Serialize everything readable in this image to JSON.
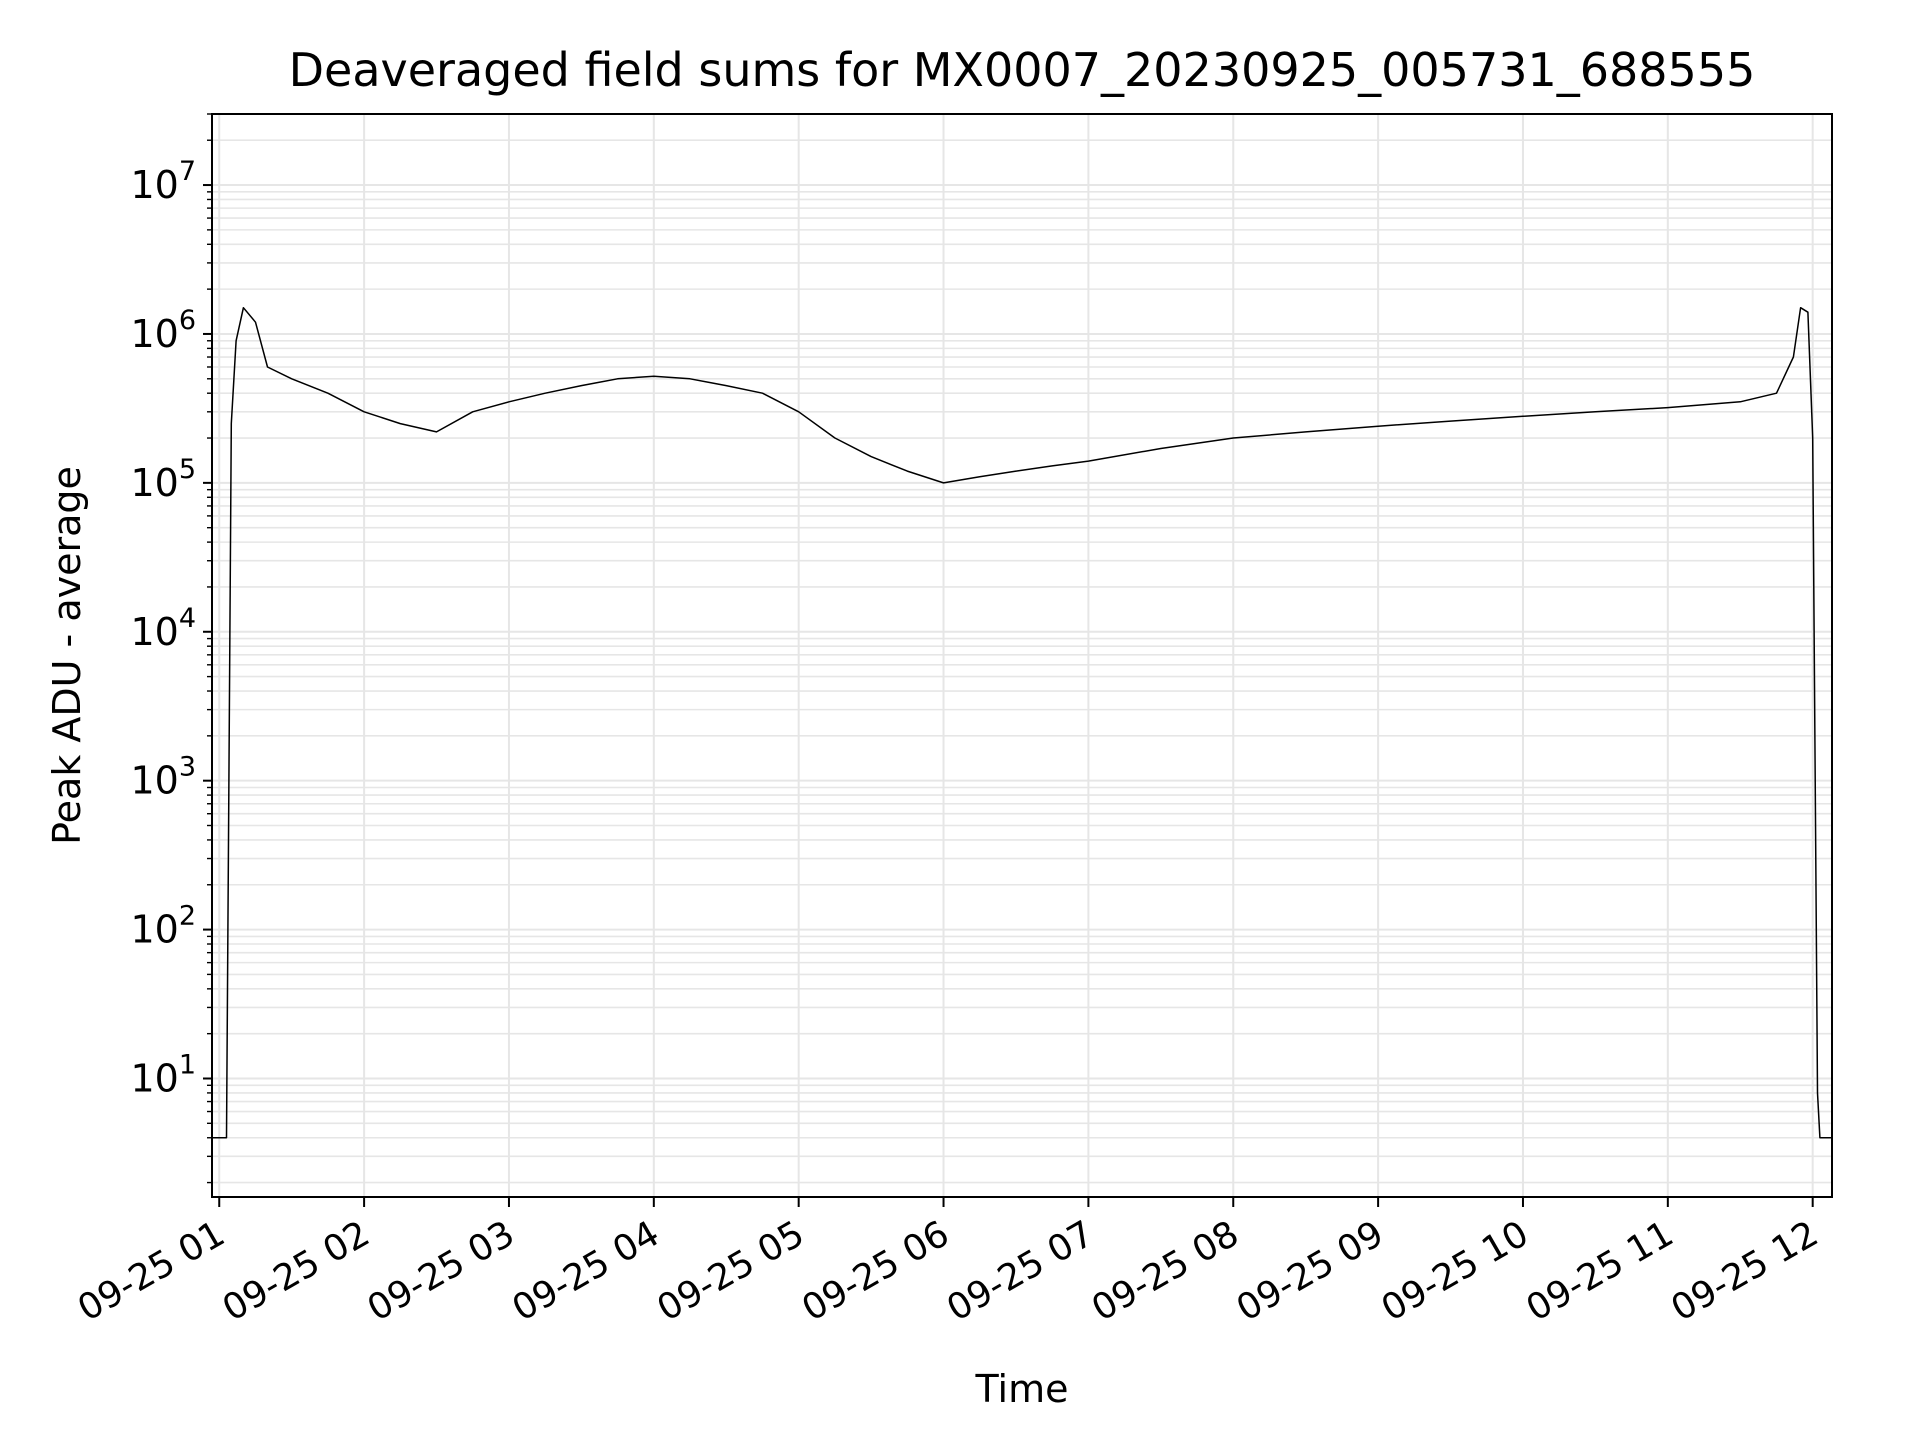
{
  "chart_data": {
    "type": "line",
    "title": "Deaveraged field sums for MX0007_20230925_005731_688555",
    "xlabel": "Time",
    "ylabel": "Peak ADU - average",
    "yscale": "log",
    "grid": true,
    "grid_minor": true,
    "line_color": "#000000",
    "grid_color": "#e6e6e6",
    "x_ticks": [
      "09-25 01",
      "09-25 02",
      "09-25 03",
      "09-25 04",
      "09-25 05",
      "09-25 06",
      "09-25 07",
      "09-25 08",
      "09-25 09",
      "09-25 10",
      "09-25 11",
      "09-25 12"
    ],
    "y_ticks": [
      {
        "base": "10",
        "exp": "1"
      },
      {
        "base": "10",
        "exp": "2"
      },
      {
        "base": "10",
        "exp": "3"
      },
      {
        "base": "10",
        "exp": "4"
      },
      {
        "base": "10",
        "exp": "5"
      },
      {
        "base": "10",
        "exp": "6"
      },
      {
        "base": "10",
        "exp": "7"
      }
    ],
    "xlim": [
      "2023-09-25 00:57",
      "2023-09-25 12:08"
    ],
    "ylim": [
      1.6,
      30000000
    ],
    "series": [
      {
        "x": [
          "2023-09-25 00:57",
          "2023-09-25 01:03",
          "2023-09-25 01:05",
          "2023-09-25 01:07",
          "2023-09-25 01:10",
          "2023-09-25 01:15",
          "2023-09-25 01:20",
          "2023-09-25 01:30",
          "2023-09-25 01:45",
          "2023-09-25 02:00",
          "2023-09-25 02:15",
          "2023-09-25 02:30",
          "2023-09-25 02:45",
          "2023-09-25 03:00",
          "2023-09-25 03:15",
          "2023-09-25 03:30",
          "2023-09-25 03:45",
          "2023-09-25 04:00",
          "2023-09-25 04:15",
          "2023-09-25 04:30",
          "2023-09-25 04:45",
          "2023-09-25 05:00",
          "2023-09-25 05:15",
          "2023-09-25 05:30",
          "2023-09-25 05:45",
          "2023-09-25 06:00",
          "2023-09-25 06:15",
          "2023-09-25 06:30",
          "2023-09-25 06:45",
          "2023-09-25 07:00",
          "2023-09-25 07:30",
          "2023-09-25 08:00",
          "2023-09-25 08:30",
          "2023-09-25 09:00",
          "2023-09-25 09:30",
          "2023-09-25 10:00",
          "2023-09-25 10:30",
          "2023-09-25 11:00",
          "2023-09-25 11:30",
          "2023-09-25 11:45",
          "2023-09-25 11:52",
          "2023-09-25 11:55",
          "2023-09-25 11:58",
          "2023-09-25 12:00",
          "2023-09-25 12:02",
          "2023-09-25 12:03",
          "2023-09-25 12:08"
        ],
        "y": [
          4,
          4,
          250000,
          900000,
          1500000,
          1200000,
          600000,
          500000,
          400000,
          300000,
          250000,
          220000,
          300000,
          350000,
          400000,
          450000,
          500000,
          520000,
          500000,
          450000,
          400000,
          300000,
          200000,
          150000,
          120000,
          100000,
          110000,
          120000,
          130000,
          140000,
          170000,
          200000,
          220000,
          240000,
          260000,
          280000,
          300000,
          320000,
          350000,
          400000,
          700000,
          1500000,
          1400000,
          200000,
          8,
          4,
          4
        ]
      }
    ]
  }
}
